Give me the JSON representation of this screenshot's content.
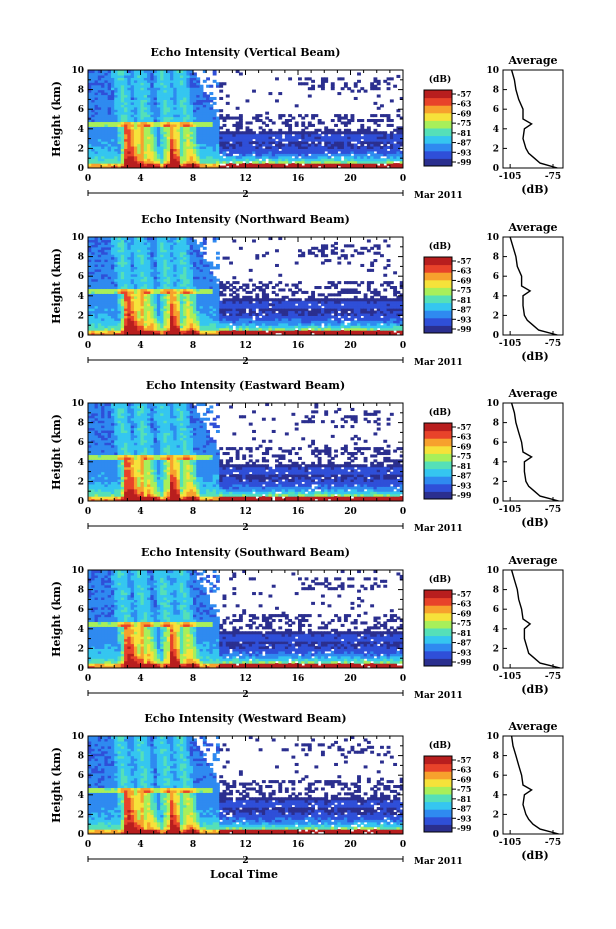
{
  "figure": {
    "xlabel": "Local Time",
    "date_label": "Mar 2011",
    "date_day": "2",
    "colorbar_unit": "(dB)",
    "colorbar_ticks": [
      "-57",
      "-63",
      "-69",
      "-75",
      "-81",
      "-87",
      "-93",
      "-99"
    ],
    "colorbar_colors": [
      "#2b2f8f",
      "#2f4fd8",
      "#2f8af0",
      "#35c6f0",
      "#55e0b8",
      "#a8ef5a",
      "#f6e23a",
      "#f7a12d",
      "#e8432a",
      "#b81e1e"
    ],
    "profile_title": "Average",
    "profile_xlabel": "(dB)",
    "profile_xticks": [
      "-105",
      "-75"
    ],
    "yticks": [
      "0",
      "2",
      "4",
      "6",
      "8",
      "10"
    ],
    "xticks": [
      "0",
      "4",
      "8",
      "12",
      "16",
      "20",
      "0"
    ],
    "ylabel": "Height (km)"
  },
  "chart_data": [
    {
      "type": "heatmap",
      "title": "Echo Intensity (Vertical Beam)",
      "xlabel": "Local Time",
      "ylabel": "Height (km)",
      "xlim": [
        0,
        24
      ],
      "ylim": [
        0,
        10
      ],
      "clim": [
        -99,
        -57
      ],
      "profile": {
        "title": "Average",
        "xlabel": "(dB)",
        "xlim": [
          -110,
          -68
        ],
        "height": [
          0,
          0.5,
          1,
          1.5,
          2,
          3,
          4,
          4.5,
          5,
          6,
          7,
          8,
          9,
          10
        ],
        "value": [
          -72,
          -84,
          -88,
          -92,
          -94,
          -96,
          -95,
          -90,
          -96,
          -96,
          -99,
          -101,
          -102,
          -104
        ]
      }
    },
    {
      "type": "heatmap",
      "title": "Echo Intensity (Northward Beam)",
      "xlabel": "Local Time",
      "ylabel": "Height (km)",
      "xlim": [
        0,
        24
      ],
      "ylim": [
        0,
        10
      ],
      "clim": [
        -99,
        -57
      ],
      "profile": {
        "title": "Average",
        "xlabel": "(dB)",
        "xlim": [
          -110,
          -68
        ],
        "height": [
          0,
          0.5,
          1,
          1.5,
          2,
          3,
          4,
          4.5,
          5,
          6,
          7,
          8,
          9,
          10
        ],
        "value": [
          -72,
          -85,
          -89,
          -93,
          -95,
          -96,
          -96,
          -91,
          -97,
          -97,
          -100,
          -101,
          -103,
          -105
        ]
      }
    },
    {
      "type": "heatmap",
      "title": "Echo Intensity (Eastward Beam)",
      "xlabel": "Local Time",
      "ylabel": "Height (km)",
      "xlim": [
        0,
        24
      ],
      "ylim": [
        0,
        10
      ],
      "clim": [
        -99,
        -57
      ],
      "profile": {
        "title": "Average",
        "xlabel": "(dB)",
        "xlim": [
          -110,
          -68
        ],
        "height": [
          0,
          0.5,
          1,
          1.5,
          2,
          3,
          4,
          4.5,
          5,
          6,
          7,
          8,
          9,
          10
        ],
        "value": [
          -71,
          -84,
          -88,
          -92,
          -94,
          -95,
          -95,
          -90,
          -96,
          -97,
          -99,
          -101,
          -102,
          -104
        ]
      }
    },
    {
      "type": "heatmap",
      "title": "Echo Intensity (Southward Beam)",
      "xlabel": "Local Time",
      "ylabel": "Height (km)",
      "xlim": [
        0,
        24
      ],
      "ylim": [
        0,
        10
      ],
      "clim": [
        -99,
        -57
      ],
      "profile": {
        "title": "Average",
        "xlabel": "(dB)",
        "xlim": [
          -110,
          -68
        ],
        "height": [
          0,
          0.5,
          1,
          1.5,
          2,
          3,
          4,
          4.5,
          5,
          6,
          7,
          8,
          9,
          10
        ],
        "value": [
          -70,
          -84,
          -88,
          -92,
          -93,
          -95,
          -95,
          -91,
          -96,
          -97,
          -99,
          -100,
          -102,
          -104
        ]
      }
    },
    {
      "type": "heatmap",
      "title": "Echo Intensity (Westward Beam)",
      "xlabel": "Local Time",
      "ylabel": "Height (km)",
      "xlim": [
        0,
        24
      ],
      "ylim": [
        0,
        10
      ],
      "clim": [
        -99,
        -57
      ],
      "profile": {
        "title": "Average",
        "xlabel": "(dB)",
        "xlim": [
          -110,
          -68
        ],
        "height": [
          0,
          0.5,
          1,
          1.5,
          2,
          3,
          4,
          4.5,
          5,
          6,
          7,
          8,
          9,
          10
        ],
        "value": [
          -71,
          -84,
          -89,
          -92,
          -94,
          -96,
          -95,
          -90,
          -96,
          -97,
          -99,
          -101,
          -103,
          -104
        ]
      }
    }
  ]
}
